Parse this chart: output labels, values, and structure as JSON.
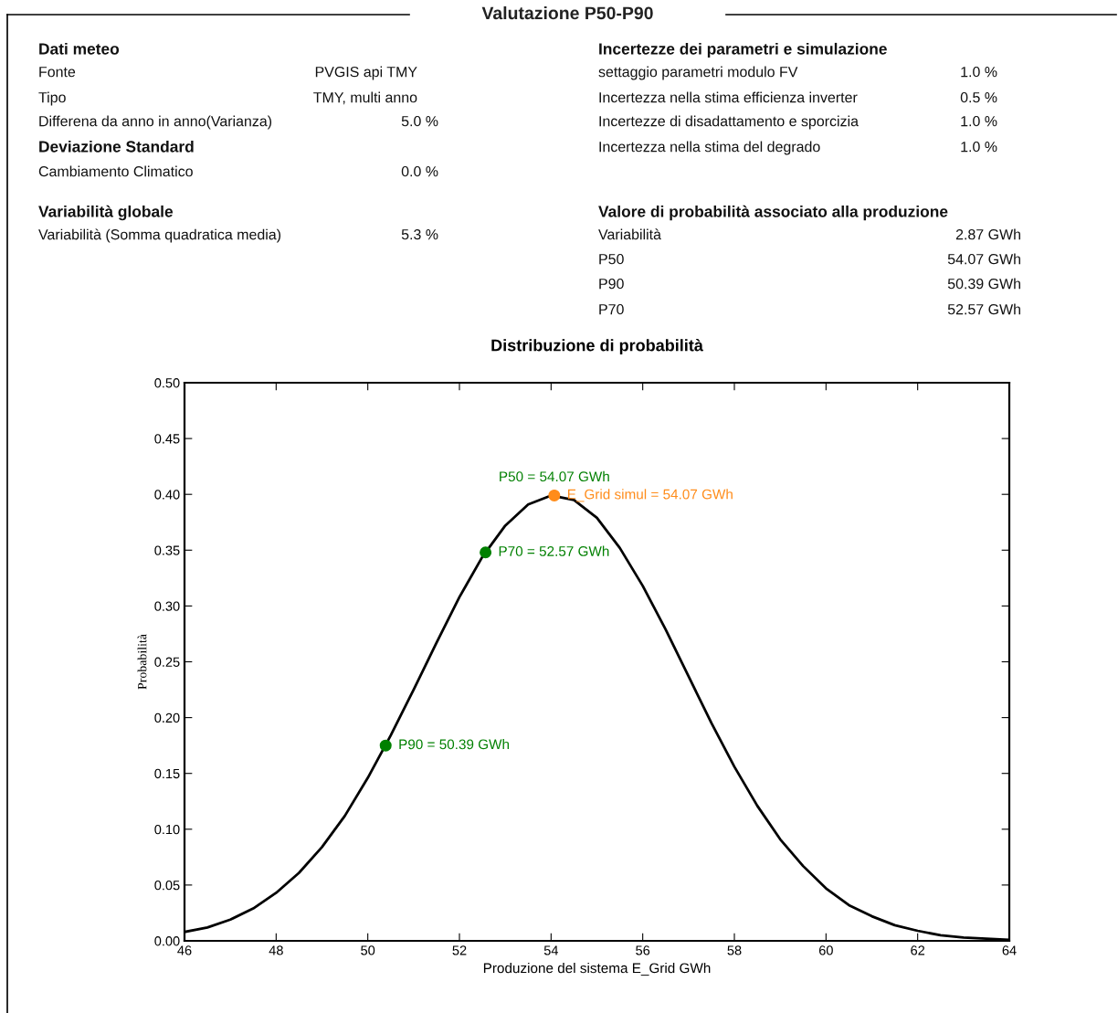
{
  "chart_data": [
    {
      "type": "other",
      "title": "Valutazione P50-P90",
      "annotations": [
        "Dati meteo",
        "Fonte",
        "PVGIS api TMY",
        "Tipo",
        "TMY, multi anno",
        "Differena da anno in anno(Varianza)",
        "5.0 %",
        "Deviazione Standard",
        "Cambiamento Climatico",
        "0.0 %",
        "Variabilità globale",
        "Variabilità (Somma quadratica media)",
        "5.3 %",
        "Incertezze dei parametri e simulazione",
        "settaggio parametri modulo FV",
        "1.0 %",
        "Incertezza nella stima efficienza inverter",
        "0.5 %",
        "Incertezze di disadattamento e sporcizia",
        "1.0 %",
        "Incertezza nella stima del degrado",
        "1.0 %",
        "Valore di probabilità associato alla produzione",
        "Variabilità",
        "2.87 GWh",
        "P50",
        "54.07 GWh",
        "P90",
        "50.39 GWh",
        "P70",
        "52.57 GWh"
      ]
    },
    {
      "type": "line",
      "title": "Distribuzione di probabilità",
      "xlabel": "Produzione del sistema E_Grid GWh",
      "ylabel": "Probabilità",
      "series": [
        {
          "type": "line",
          "color": "#000000",
          "x": [
            46,
            46.5,
            47,
            47.5,
            48,
            48.5,
            49,
            49.5,
            50,
            50.5,
            51,
            51.5,
            52,
            52.5,
            53,
            53.5,
            54,
            54.5,
            55,
            55.5,
            56,
            56.5,
            57,
            57.5,
            58,
            58.5,
            59,
            59.5,
            60,
            60.5,
            61,
            61.5,
            62,
            62.5,
            63,
            63.5,
            64
          ],
          "values": [
            0.008,
            0.012,
            0.019,
            0.029,
            0.043,
            0.061,
            0.084,
            0.112,
            0.146,
            0.184,
            0.225,
            0.267,
            0.308,
            0.344,
            0.372,
            0.391,
            0.399,
            0.395,
            0.379,
            0.352,
            0.318,
            0.279,
            0.237,
            0.195,
            0.156,
            0.121,
            0.091,
            0.067,
            0.047,
            0.032,
            0.022,
            0.014,
            0.009,
            0.005,
            0.003,
            0.002,
            0.001
          ]
        },
        {
          "type": "scatter",
          "marker": "circle",
          "color": "#008000",
          "x": [
            50.39,
            52.57
          ],
          "values": [
            0.175,
            0.348
          ]
        },
        {
          "type": "scatter",
          "marker": "circle",
          "color": "#ff8c1a",
          "name": "E_Grid simul = 54.07 GWh",
          "x": [
            54.07
          ],
          "values": [
            0.399
          ]
        }
      ],
      "annotations": [
        {
          "text": "P50 = 54.07 GWh",
          "x": 54.07,
          "y": 0.399
        },
        {
          "text": "P70 = 52.57 GWh",
          "x": 52.57,
          "y": 0.348
        },
        {
          "text": "P90 = 50.39 GWh",
          "x": 50.39,
          "y": 0.175
        }
      ],
      "xlim": [
        46,
        64
      ],
      "xticks": [
        46,
        48,
        50,
        52,
        54,
        56,
        58,
        60,
        62,
        64
      ],
      "ylim": [
        0,
        0.5
      ],
      "yticks": [
        {
          "value": 0,
          "label": "0.00"
        },
        {
          "value": 0.05,
          "label": "0.05"
        },
        {
          "value": 0.1,
          "label": "0.10"
        },
        {
          "value": 0.15,
          "label": "0.15"
        },
        {
          "value": 0.2,
          "label": "0.20"
        },
        {
          "value": 0.25,
          "label": "0.25"
        },
        {
          "value": 0.3,
          "label": "0.30"
        },
        {
          "value": 0.35,
          "label": "0.35"
        },
        {
          "value": 0.4,
          "label": "0.40"
        },
        {
          "value": 0.45,
          "label": "0.45"
        },
        {
          "value": 0.5,
          "label": "0.50"
        }
      ],
      "grid": false,
      "legend": false
    }
  ]
}
